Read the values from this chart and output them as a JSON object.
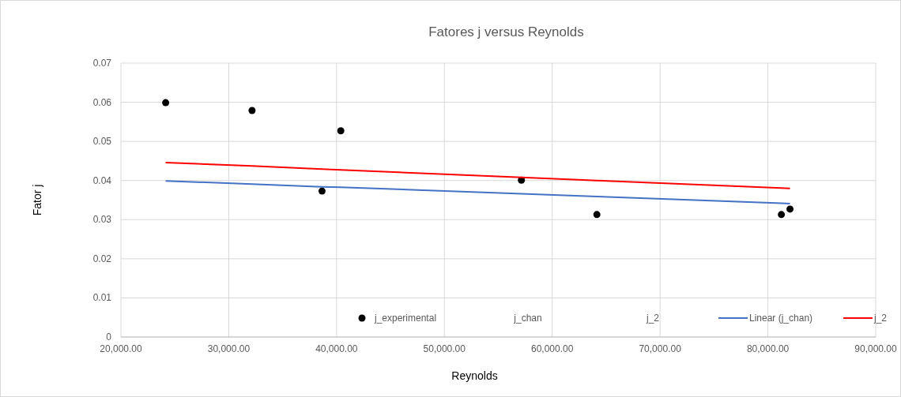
{
  "chart_data": {
    "type": "scatter",
    "title": "Fatores j versus Reynolds",
    "xlabel": "Reynolds",
    "ylabel": "Fator j",
    "x": [
      24150,
      32160,
      38650,
      40390,
      57140,
      64140,
      81250,
      82050
    ],
    "series": [
      {
        "name": "j_experimental",
        "type": "scatter",
        "marker": "circle",
        "color": "#000000",
        "values": [
          0.0599,
          0.0579,
          0.0373,
          0.0527,
          0.0401,
          0.0313,
          0.0313,
          0.0327
        ]
      },
      {
        "name": "j_chan",
        "type": "scatter",
        "marker": "none",
        "values": [
          null,
          null,
          null,
          null,
          null,
          null,
          null,
          null
        ]
      },
      {
        "name": "j_2",
        "type": "scatter",
        "marker": "none",
        "values": [
          null,
          null,
          null,
          null,
          null,
          null,
          null,
          null
        ]
      },
      {
        "name": "Linear (j_chan)",
        "type": "line",
        "marker": "none",
        "color": "#4472c4",
        "values": [
          0.0399,
          0.0391,
          0.0384,
          0.0383,
          0.0366,
          0.0359,
          0.0342,
          0.0341
        ]
      },
      {
        "name": "j_2",
        "type": "line",
        "marker": "none",
        "color": "#ff0000",
        "values": [
          0.0446,
          0.0437,
          0.0429,
          0.0427,
          0.0408,
          0.04,
          0.0381,
          0.038
        ]
      }
    ],
    "xlim": [
      20000,
      90000
    ],
    "xticks": [
      {
        "value": 20000,
        "label": "20,000.00"
      },
      {
        "value": 30000,
        "label": "30,000.00"
      },
      {
        "value": 40000,
        "label": "40,000.00"
      },
      {
        "value": 50000,
        "label": "50,000.00"
      },
      {
        "value": 60000,
        "label": "60,000.00"
      },
      {
        "value": 70000,
        "label": "70,000.00"
      },
      {
        "value": 80000,
        "label": "80,000.00"
      },
      {
        "value": 90000,
        "label": "90,000.00"
      }
    ],
    "ylim": [
      0,
      0.07
    ],
    "yticks": [
      0,
      0.01,
      0.02,
      0.03,
      0.04,
      0.05,
      0.06,
      0.07
    ],
    "grid": true,
    "legend": "bottom"
  }
}
